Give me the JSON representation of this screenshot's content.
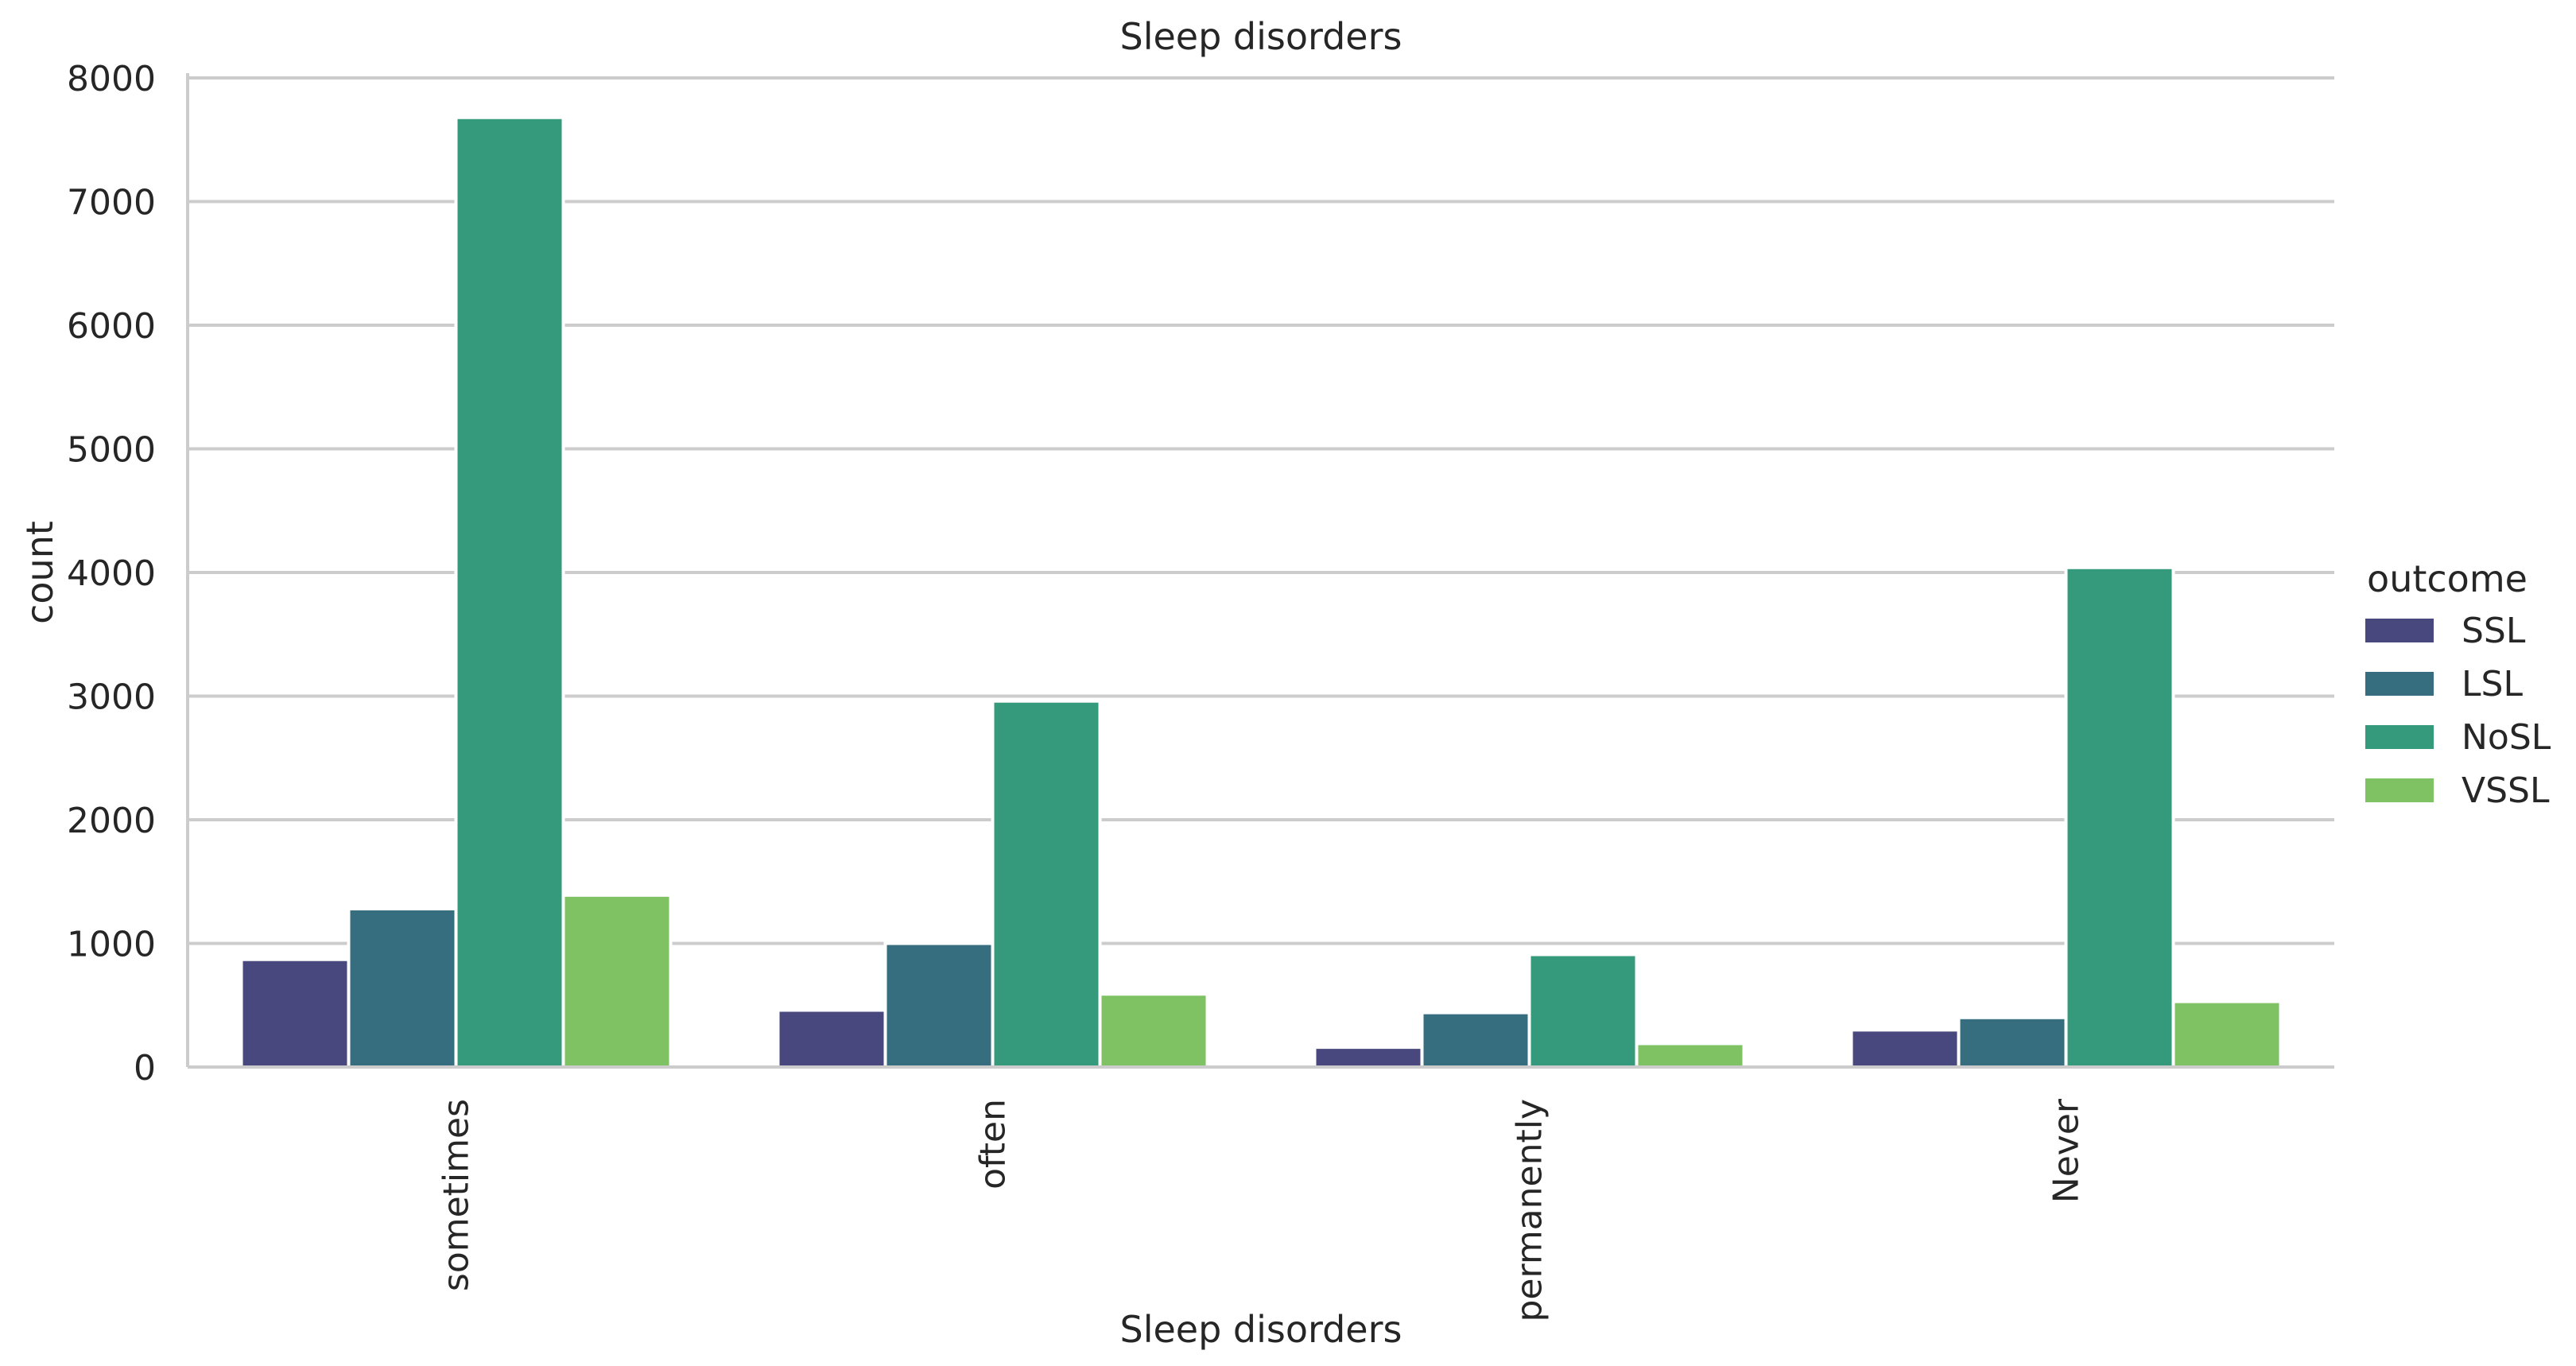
{
  "chart_data": {
    "type": "bar",
    "title": "Sleep disorders",
    "xlabel": "Sleep disorders",
    "ylabel": "count",
    "categories": [
      "sometimes",
      "often",
      "permanently",
      "Never"
    ],
    "series": [
      {
        "name": "SSL",
        "color": "#48487e",
        "values": [
          870,
          460,
          160,
          300
        ]
      },
      {
        "name": "LSL",
        "color": "#366e80",
        "values": [
          1280,
          1000,
          440,
          400
        ]
      },
      {
        "name": "NoSL",
        "color": "#35997c",
        "values": [
          7680,
          2960,
          910,
          4040
        ]
      },
      {
        "name": "VSSL",
        "color": "#7ec263",
        "values": [
          1390,
          590,
          190,
          530
        ]
      }
    ],
    "ylim": [
      0,
      8000
    ],
    "yticks": [
      "0",
      "1000",
      "2000",
      "3000",
      "4000",
      "5000",
      "6000",
      "7000",
      "8000"
    ],
    "legend_title": "outcome",
    "legend_position": "right",
    "grid": true
  }
}
